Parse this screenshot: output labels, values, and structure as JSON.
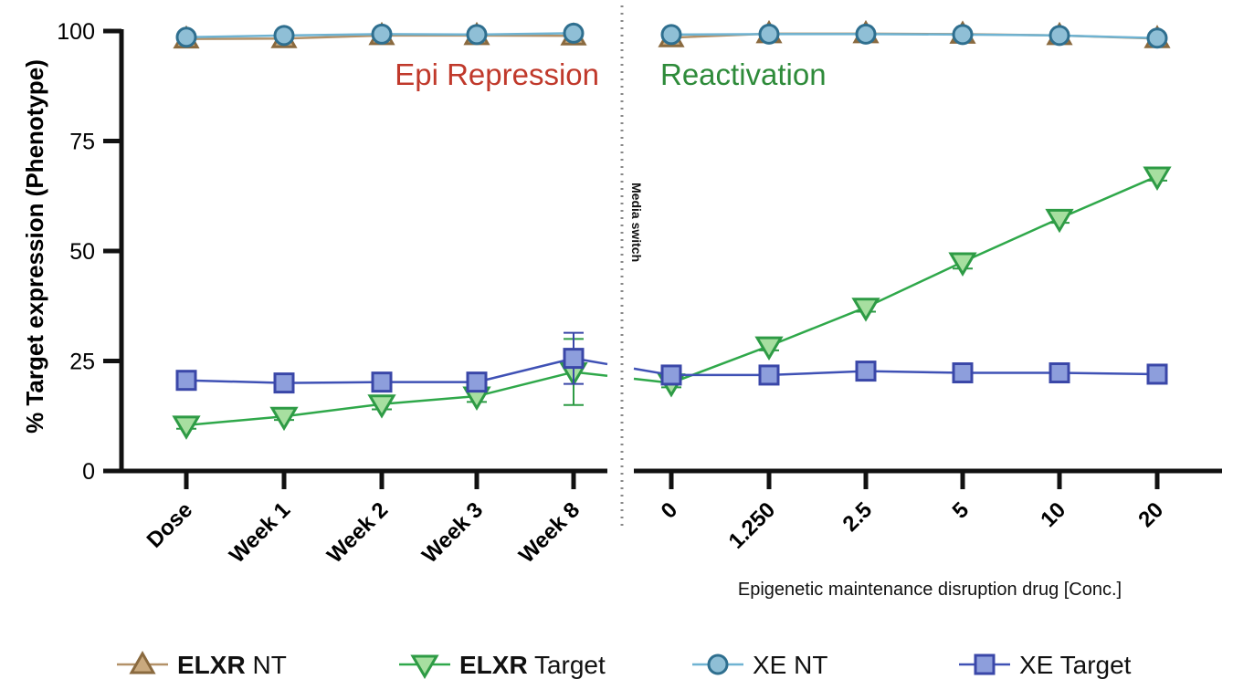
{
  "chart_data": {
    "type": "line",
    "ylabel": "% Target expression (Phenotype)",
    "xlabel": "Epigenetic maintenance disruption drug [Conc.]",
    "ylim": [
      0,
      100
    ],
    "yticks": [
      0,
      25,
      50,
      75,
      100
    ],
    "grid": false,
    "legend_position": "bottom",
    "categories": [
      "Dose",
      "Week 1",
      "Week 2",
      "Week 3",
      "Week 8",
      "0",
      "1.250",
      "2.5",
      "5",
      "10",
      "20"
    ],
    "annotations": {
      "phase1": "Epi Repression",
      "phase2": "Reactivation",
      "divider": "Media switch"
    },
    "phase_colors": {
      "phase1": "#c0392b",
      "phase2": "#2e8b3a"
    },
    "series": [
      {
        "name": "XE NT",
        "legend_label": "XE NT",
        "marker": "circle",
        "line_color": "#6fb3d2",
        "marker_fill": "#8fbfd6",
        "marker_stroke": "#2f6f8f",
        "values": [
          98.6,
          99.0,
          99.3,
          99.2,
          99.5,
          99.2,
          99.3,
          99.3,
          99.2,
          99.0,
          98.4
        ]
      },
      {
        "name": "ELXR NT",
        "legend_bold": "ELXR",
        "legend_label": " NT",
        "marker": "triangle-up",
        "line_color": "#b39168",
        "marker_fill": "#c9a97e",
        "marker_stroke": "#8a6a3f",
        "values": [
          98.2,
          98.3,
          99.0,
          99.0,
          98.9,
          98.5,
          99.4,
          99.4,
          99.3,
          99.0,
          98.3
        ]
      },
      {
        "name": "ELXR Target",
        "legend_bold": "ELXR",
        "legend_label": " Target",
        "marker": "triangle-down",
        "line_color": "#2fa84a",
        "marker_fill": "#a7dfa0",
        "marker_stroke": "#2e9b45",
        "values": [
          10.4,
          12.4,
          15.2,
          17.0,
          22.5,
          20.0,
          28.4,
          37.2,
          47.5,
          57.4,
          67.0
        ],
        "errors": [
          0.8,
          0.8,
          1.2,
          1.3,
          7.5,
          1.0,
          1.0,
          1.0,
          1.5,
          1.0,
          1.0
        ]
      },
      {
        "name": "XE Target",
        "legend_label": "XE Target",
        "marker": "square",
        "line_color": "#3f51b5",
        "marker_fill": "#8d9edc",
        "marker_stroke": "#3a47a8",
        "values": [
          20.6,
          20.0,
          20.2,
          20.2,
          25.6,
          21.8,
          21.8,
          22.7,
          22.3,
          22.3,
          22.0
        ],
        "errors": [
          0.6,
          0.5,
          0.6,
          0.6,
          5.8,
          0.8,
          0.5,
          0.6,
          0.6,
          0.6,
          0.6
        ]
      }
    ]
  }
}
